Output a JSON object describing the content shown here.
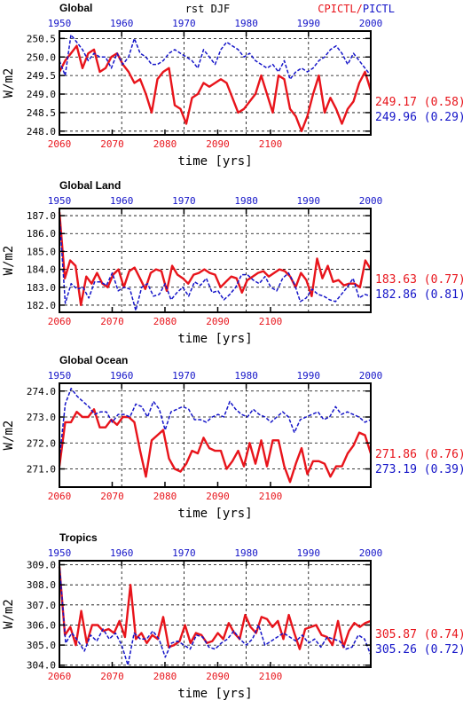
{
  "header": {
    "center_title": "rst DJF",
    "legend_red": "CPICTL/",
    "legend_blue": "PICTL"
  },
  "colors": {
    "red": "#e8141b",
    "blue": "#1414c8"
  },
  "chart_data": [
    {
      "type": "line",
      "title": "Global",
      "xlabel": "time [yrs]",
      "ylabel": "W/m2",
      "bottom_axis": {
        "ticks": [
          "2060",
          "2070",
          "2080",
          "2090",
          "2100"
        ],
        "range": [
          2060,
          2119
        ]
      },
      "top_axis": {
        "ticks": [
          "1950",
          "1960",
          "1970",
          "1980",
          "1990",
          "2000"
        ],
        "range": [
          1950,
          2000
        ]
      },
      "ylim": [
        247.9,
        250.7
      ],
      "yticks": [
        248.0,
        248.5,
        249.0,
        249.5,
        250.0,
        250.5
      ],
      "ytick_labels": [
        "248.0",
        "248.5",
        "249.0",
        "249.5",
        "250.0",
        "250.5"
      ],
      "grid": "dashed",
      "series": [
        {
          "name": "CPICTL",
          "color": "red",
          "stat": "249.17 (0.58)",
          "values": [
            249.6,
            249.9,
            250.1,
            250.3,
            249.7,
            250.1,
            250.2,
            249.6,
            249.7,
            250.0,
            250.1,
            249.8,
            249.6,
            249.3,
            249.4,
            249.0,
            248.5,
            249.4,
            249.6,
            249.7,
            248.7,
            248.6,
            248.2,
            248.9,
            249.0,
            249.3,
            249.2,
            249.3,
            249.4,
            249.3,
            248.9,
            248.5,
            248.6,
            248.8,
            249.0,
            249.5,
            249.0,
            248.5,
            249.5,
            249.4,
            248.6,
            248.4,
            248.0,
            248.4,
            249.0,
            249.5,
            248.5,
            248.9,
            248.6,
            248.2,
            248.6,
            248.8,
            249.3,
            249.6,
            249.1
          ]
        },
        {
          "name": "PICTL",
          "color": "blue",
          "stat": "249.96 (0.29)",
          "values": [
            249.9,
            249.5,
            250.6,
            250.4,
            250.2,
            249.9,
            250.1,
            250.0,
            250.0,
            249.7,
            250.1,
            249.8,
            250.0,
            250.5,
            250.1,
            250.0,
            249.8,
            249.8,
            249.9,
            250.1,
            250.2,
            250.1,
            250.0,
            249.9,
            249.7,
            250.2,
            250.0,
            249.8,
            250.2,
            250.4,
            250.3,
            250.2,
            250.0,
            250.1,
            249.9,
            249.8,
            249.7,
            249.8,
            249.6,
            249.9,
            249.4,
            249.6,
            249.7,
            249.6,
            249.7,
            249.9,
            250.0,
            250.2,
            250.3,
            250.1,
            249.8,
            250.1,
            249.9,
            249.7,
            249.5
          ]
        }
      ]
    },
    {
      "type": "line",
      "title": "Global Land",
      "xlabel": "time [yrs]",
      "ylabel": "W/m2",
      "bottom_axis": {
        "ticks": [
          "2060",
          "2070",
          "2080",
          "2090",
          "2100"
        ],
        "range": [
          2060,
          2119
        ]
      },
      "top_axis": {
        "ticks": [
          "1950",
          "1960",
          "1970",
          "1980",
          "1990",
          "2000"
        ],
        "range": [
          1950,
          2000
        ]
      },
      "ylim": [
        181.6,
        187.4
      ],
      "yticks": [
        182,
        183,
        184,
        185,
        186,
        187
      ],
      "ytick_labels": [
        "182.0",
        "183.0",
        "184.0",
        "185.0",
        "186.0",
        "187.0"
      ],
      "grid": "dashed",
      "series": [
        {
          "name": "CPICTL",
          "color": "red",
          "stat": "183.63 (0.77)",
          "values": [
            187.2,
            183.5,
            184.5,
            184.2,
            182.0,
            183.6,
            183.2,
            183.8,
            183.2,
            183.0,
            183.7,
            184.0,
            183.0,
            183.9,
            184.1,
            183.5,
            182.9,
            183.8,
            184.0,
            183.9,
            182.8,
            184.2,
            183.7,
            183.5,
            183.2,
            183.7,
            183.8,
            184.0,
            183.8,
            183.7,
            183.0,
            183.3,
            183.6,
            183.5,
            182.7,
            183.4,
            183.6,
            183.8,
            183.9,
            183.6,
            183.8,
            184.0,
            183.9,
            183.6,
            183.0,
            183.8,
            183.4,
            182.5,
            184.6,
            183.5,
            184.2,
            183.3,
            183.4,
            183.1,
            183.2,
            183.2,
            183.0,
            184.5,
            184.0
          ]
        },
        {
          "name": "PICTL",
          "color": "blue",
          "stat": "182.86 (0.81)",
          "values": [
            187.0,
            182.1,
            183.2,
            182.9,
            183.0,
            182.4,
            183.3,
            183.3,
            183.1,
            183.8,
            182.8,
            183.0,
            182.9,
            181.7,
            183.0,
            183.2,
            182.5,
            182.6,
            183.2,
            182.3,
            182.7,
            183.0,
            182.5,
            183.3,
            183.1,
            183.5,
            182.7,
            182.8,
            182.3,
            182.6,
            183.0,
            183.7,
            183.7,
            183.4,
            183.2,
            183.6,
            183.0,
            182.8,
            183.5,
            183.8,
            183.2,
            182.2,
            182.4,
            182.9,
            182.6,
            182.5,
            182.3,
            182.2,
            182.6,
            183.0,
            183.5,
            182.4,
            182.6,
            182.5
          ]
        }
      ]
    },
    {
      "type": "line",
      "title": "Global Ocean",
      "xlabel": "time [yrs]",
      "ylabel": "W/m2",
      "bottom_axis": {
        "ticks": [
          "2060",
          "2070",
          "2080",
          "2090",
          "2100"
        ],
        "range": [
          2060,
          2119
        ]
      },
      "top_axis": {
        "ticks": [
          "1950",
          "1960",
          "1970",
          "1980",
          "1990",
          "2000"
        ],
        "range": [
          1950,
          2000
        ]
      },
      "ylim": [
        270.3,
        274.3
      ],
      "yticks": [
        271,
        272,
        273,
        274
      ],
      "ytick_labels": [
        "271.0",
        "272.0",
        "273.0",
        "274.0"
      ],
      "grid": "dashed",
      "series": [
        {
          "name": "CPICTL",
          "color": "red",
          "stat": "271.86 (0.76)",
          "values": [
            271.1,
            272.8,
            272.8,
            273.2,
            273.0,
            273.0,
            273.3,
            272.6,
            272.6,
            272.9,
            272.7,
            273.0,
            273.0,
            272.8,
            271.7,
            270.7,
            272.1,
            272.3,
            272.5,
            271.4,
            271.0,
            270.9,
            271.2,
            271.7,
            271.6,
            272.2,
            271.8,
            271.7,
            271.7,
            271.0,
            271.3,
            271.7,
            271.1,
            272.0,
            271.2,
            272.1,
            271.1,
            272.1,
            272.1,
            271.1,
            270.5,
            271.2,
            271.8,
            270.8,
            271.3,
            271.3,
            271.2,
            270.7,
            271.1,
            271.1,
            271.6,
            271.9,
            272.4,
            272.3,
            271.6
          ]
        },
        {
          "name": "PICTL",
          "color": "blue",
          "stat": "273.19 (0.39)",
          "values": [
            271.4,
            273.5,
            274.1,
            273.8,
            273.6,
            273.4,
            273.1,
            273.2,
            273.2,
            272.8,
            273.1,
            273.1,
            273.0,
            273.5,
            273.4,
            273.0,
            273.6,
            273.3,
            272.5,
            273.2,
            273.3,
            273.4,
            273.3,
            272.9,
            272.9,
            272.8,
            273.0,
            273.1,
            273.0,
            273.6,
            273.3,
            273.1,
            273.0,
            273.3,
            273.1,
            273.0,
            272.8,
            273.0,
            273.2,
            273.0,
            272.4,
            272.9,
            273.0,
            273.1,
            273.2,
            272.9,
            273.0,
            273.4,
            273.1,
            273.2,
            273.1,
            273.0,
            272.8,
            272.9
          ]
        }
      ]
    },
    {
      "type": "line",
      "title": "Tropics",
      "xlabel": "time [yrs]",
      "ylabel": "W/m2",
      "bottom_axis": {
        "ticks": [
          "2060",
          "2070",
          "2080",
          "2090",
          "2100"
        ],
        "range": [
          2060,
          2119
        ]
      },
      "top_axis": {
        "ticks": [
          "1950",
          "1960",
          "1970",
          "1980",
          "1990",
          "2000"
        ],
        "range": [
          1950,
          2000
        ]
      },
      "ylim": [
        303.9,
        309.2
      ],
      "yticks": [
        304,
        305,
        306,
        307,
        308,
        309
      ],
      "ytick_labels": [
        "304.0",
        "305.0",
        "306.0",
        "307.0",
        "308.0",
        "309.0"
      ],
      "grid": "dashed",
      "series": [
        {
          "name": "CPICTL",
          "color": "red",
          "stat": "305.87 (0.74)",
          "values": [
            308.9,
            305.5,
            305.9,
            305.0,
            306.7,
            305.1,
            306.0,
            306.0,
            305.7,
            305.8,
            305.6,
            306.2,
            305.4,
            308.0,
            305.3,
            305.6,
            305.1,
            305.5,
            305.3,
            306.4,
            304.9,
            305.0,
            305.2,
            306.0,
            305.1,
            305.6,
            305.5,
            305.1,
            305.2,
            305.6,
            305.3,
            306.1,
            305.6,
            305.3,
            306.5,
            305.9,
            305.6,
            306.4,
            306.3,
            305.9,
            306.2,
            305.3,
            306.5,
            305.6,
            304.8,
            305.8,
            305.9,
            306.0,
            305.5,
            305.4,
            305.0,
            306.2,
            304.9,
            305.7,
            306.1,
            305.9,
            306.1,
            306.2
          ]
        },
        {
          "name": "PICTL",
          "color": "blue",
          "stat": "305.26 (0.72)",
          "values": [
            309.0,
            305.1,
            305.6,
            305.2,
            304.7,
            305.5,
            305.2,
            305.8,
            305.3,
            305.6,
            305.0,
            304.0,
            305.6,
            305.3,
            305.3,
            305.7,
            305.3,
            304.4,
            305.1,
            305.2,
            305.0,
            304.8,
            305.5,
            305.4,
            304.9,
            304.8,
            305.1,
            305.3,
            305.7,
            305.3,
            305.0,
            305.3,
            306.0,
            305.0,
            305.2,
            305.4,
            305.6,
            305.4,
            305.2,
            305.5,
            305.1,
            305.3,
            304.9,
            305.4,
            305.3,
            305.2,
            304.8,
            304.9,
            305.5,
            305.3,
            304.5
          ]
        }
      ]
    }
  ]
}
